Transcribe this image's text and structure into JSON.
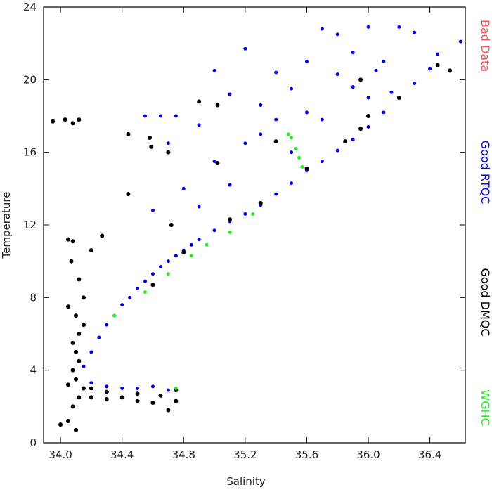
{
  "chart_data": {
    "type": "scatter",
    "x_label": "Salinity",
    "y_label": "Temperature",
    "xlim": [
      33.89,
      36.63
    ],
    "ylim": [
      0,
      24
    ],
    "xticks": [
      {
        "value": 34.0,
        "label": "34.0"
      },
      34.4,
      34.8,
      35.2,
      35.6,
      {
        "value": 36.0,
        "label": "36.0"
      },
      36.4
    ],
    "yticks": [
      0,
      4,
      8,
      12,
      16,
      20,
      24
    ],
    "series": [
      {
        "name": "Bad Data",
        "color": "#ff5050",
        "x": [],
        "values": []
      },
      {
        "name": "Good RTQC",
        "color": "#0000ee",
        "x": [
          34.15,
          34.2,
          34.25,
          34.3,
          34.35,
          34.4,
          34.45,
          34.5,
          34.55,
          34.6,
          34.65,
          34.7,
          34.75,
          34.8,
          34.85,
          34.9,
          35.0,
          35.1,
          35.2,
          35.3,
          35.4,
          35.5,
          35.6,
          35.7,
          35.8,
          35.9,
          36.0,
          36.1,
          36.2,
          36.3,
          36.4,
          34.2,
          34.3,
          34.4,
          34.5,
          34.6,
          34.7,
          34.55,
          34.65,
          34.75,
          34.9,
          35.0,
          35.1,
          35.2,
          35.3,
          35.4,
          35.5,
          35.6,
          35.7,
          35.8,
          35.9,
          36.0,
          36.1,
          36.2,
          36.3,
          36.45,
          36.6,
          35.8,
          36.05,
          35.0,
          35.2,
          35.4,
          34.8,
          34.6,
          35.1,
          35.3,
          35.6,
          35.9,
          36.15,
          34.7,
          35.5,
          34.9,
          35.7,
          36.0
        ],
        "values": [
          4.2,
          5.0,
          5.8,
          6.5,
          7.0,
          7.6,
          8.0,
          8.5,
          8.9,
          9.3,
          9.7,
          10.0,
          10.3,
          10.6,
          10.9,
          11.2,
          11.7,
          12.2,
          12.6,
          13.1,
          13.7,
          14.3,
          15.0,
          15.5,
          16.1,
          16.7,
          17.4,
          18.2,
          19.0,
          19.8,
          20.6,
          3.3,
          3.1,
          3.0,
          3.0,
          3.1,
          2.9,
          18.0,
          18.0,
          18.0,
          17.5,
          20.5,
          19.2,
          21.7,
          17.0,
          20.4,
          19.5,
          21.0,
          22.8,
          22.5,
          21.5,
          22.9,
          21.0,
          22.9,
          22.6,
          21.4,
          22.1,
          20.3,
          20.5,
          15.5,
          16.5,
          17.8,
          14.0,
          12.8,
          14.2,
          18.6,
          18.2,
          19.6,
          19.3,
          16.5,
          16.0,
          13.0,
          17.8,
          19.0
        ]
      },
      {
        "name": "Good DMQC",
        "color": "#000000",
        "x": [
          34.05,
          34.0,
          34.1,
          34.08,
          34.12,
          34.15,
          34.1,
          34.08,
          34.12,
          34.1,
          34.08,
          34.12,
          34.15,
          34.1,
          34.05,
          34.15,
          34.12,
          34.07,
          34.05,
          34.08,
          34.2,
          34.05,
          34.2,
          34.3,
          34.4,
          34.5,
          34.6,
          34.7,
          34.75,
          34.2,
          34.3,
          34.5,
          34.65,
          34.75,
          33.95,
          34.03,
          34.08,
          34.12,
          34.44,
          34.44,
          34.58,
          34.59,
          34.7,
          34.72,
          34.27,
          34.9,
          35.02,
          35.02,
          35.4,
          34.6,
          34.8,
          35.1,
          35.3,
          35.6,
          35.85,
          35.95,
          36.0,
          35.95,
          36.45,
          36.53,
          36.2
        ],
        "values": [
          1.2,
          1.0,
          0.7,
          2.0,
          2.5,
          3.0,
          3.5,
          4.0,
          4.5,
          5.0,
          5.5,
          6.0,
          6.5,
          7.0,
          7.5,
          8.0,
          9.0,
          10.0,
          11.2,
          11.1,
          10.6,
          3.2,
          2.5,
          2.4,
          2.5,
          2.3,
          2.2,
          1.8,
          2.3,
          3.0,
          2.8,
          2.7,
          2.6,
          2.9,
          17.7,
          17.8,
          17.6,
          17.8,
          17.0,
          13.7,
          16.8,
          16.3,
          16.0,
          12.0,
          11.4,
          18.8,
          18.6,
          15.4,
          16.6,
          8.7,
          10.5,
          12.3,
          13.2,
          15.1,
          16.6,
          17.3,
          18.0,
          20.0,
          20.8,
          20.5,
          19.0
        ]
      },
      {
        "name": "WGHC",
        "color": "#22ee22",
        "x": [
          34.35,
          34.55,
          34.7,
          34.85,
          34.95,
          35.1,
          35.25,
          35.48,
          35.5,
          35.53,
          35.55,
          35.57,
          34.75
        ],
        "values": [
          7.0,
          8.3,
          9.3,
          10.3,
          10.9,
          11.6,
          12.6,
          17.0,
          16.8,
          16.2,
          15.7,
          15.2,
          3.0
        ]
      }
    ]
  }
}
